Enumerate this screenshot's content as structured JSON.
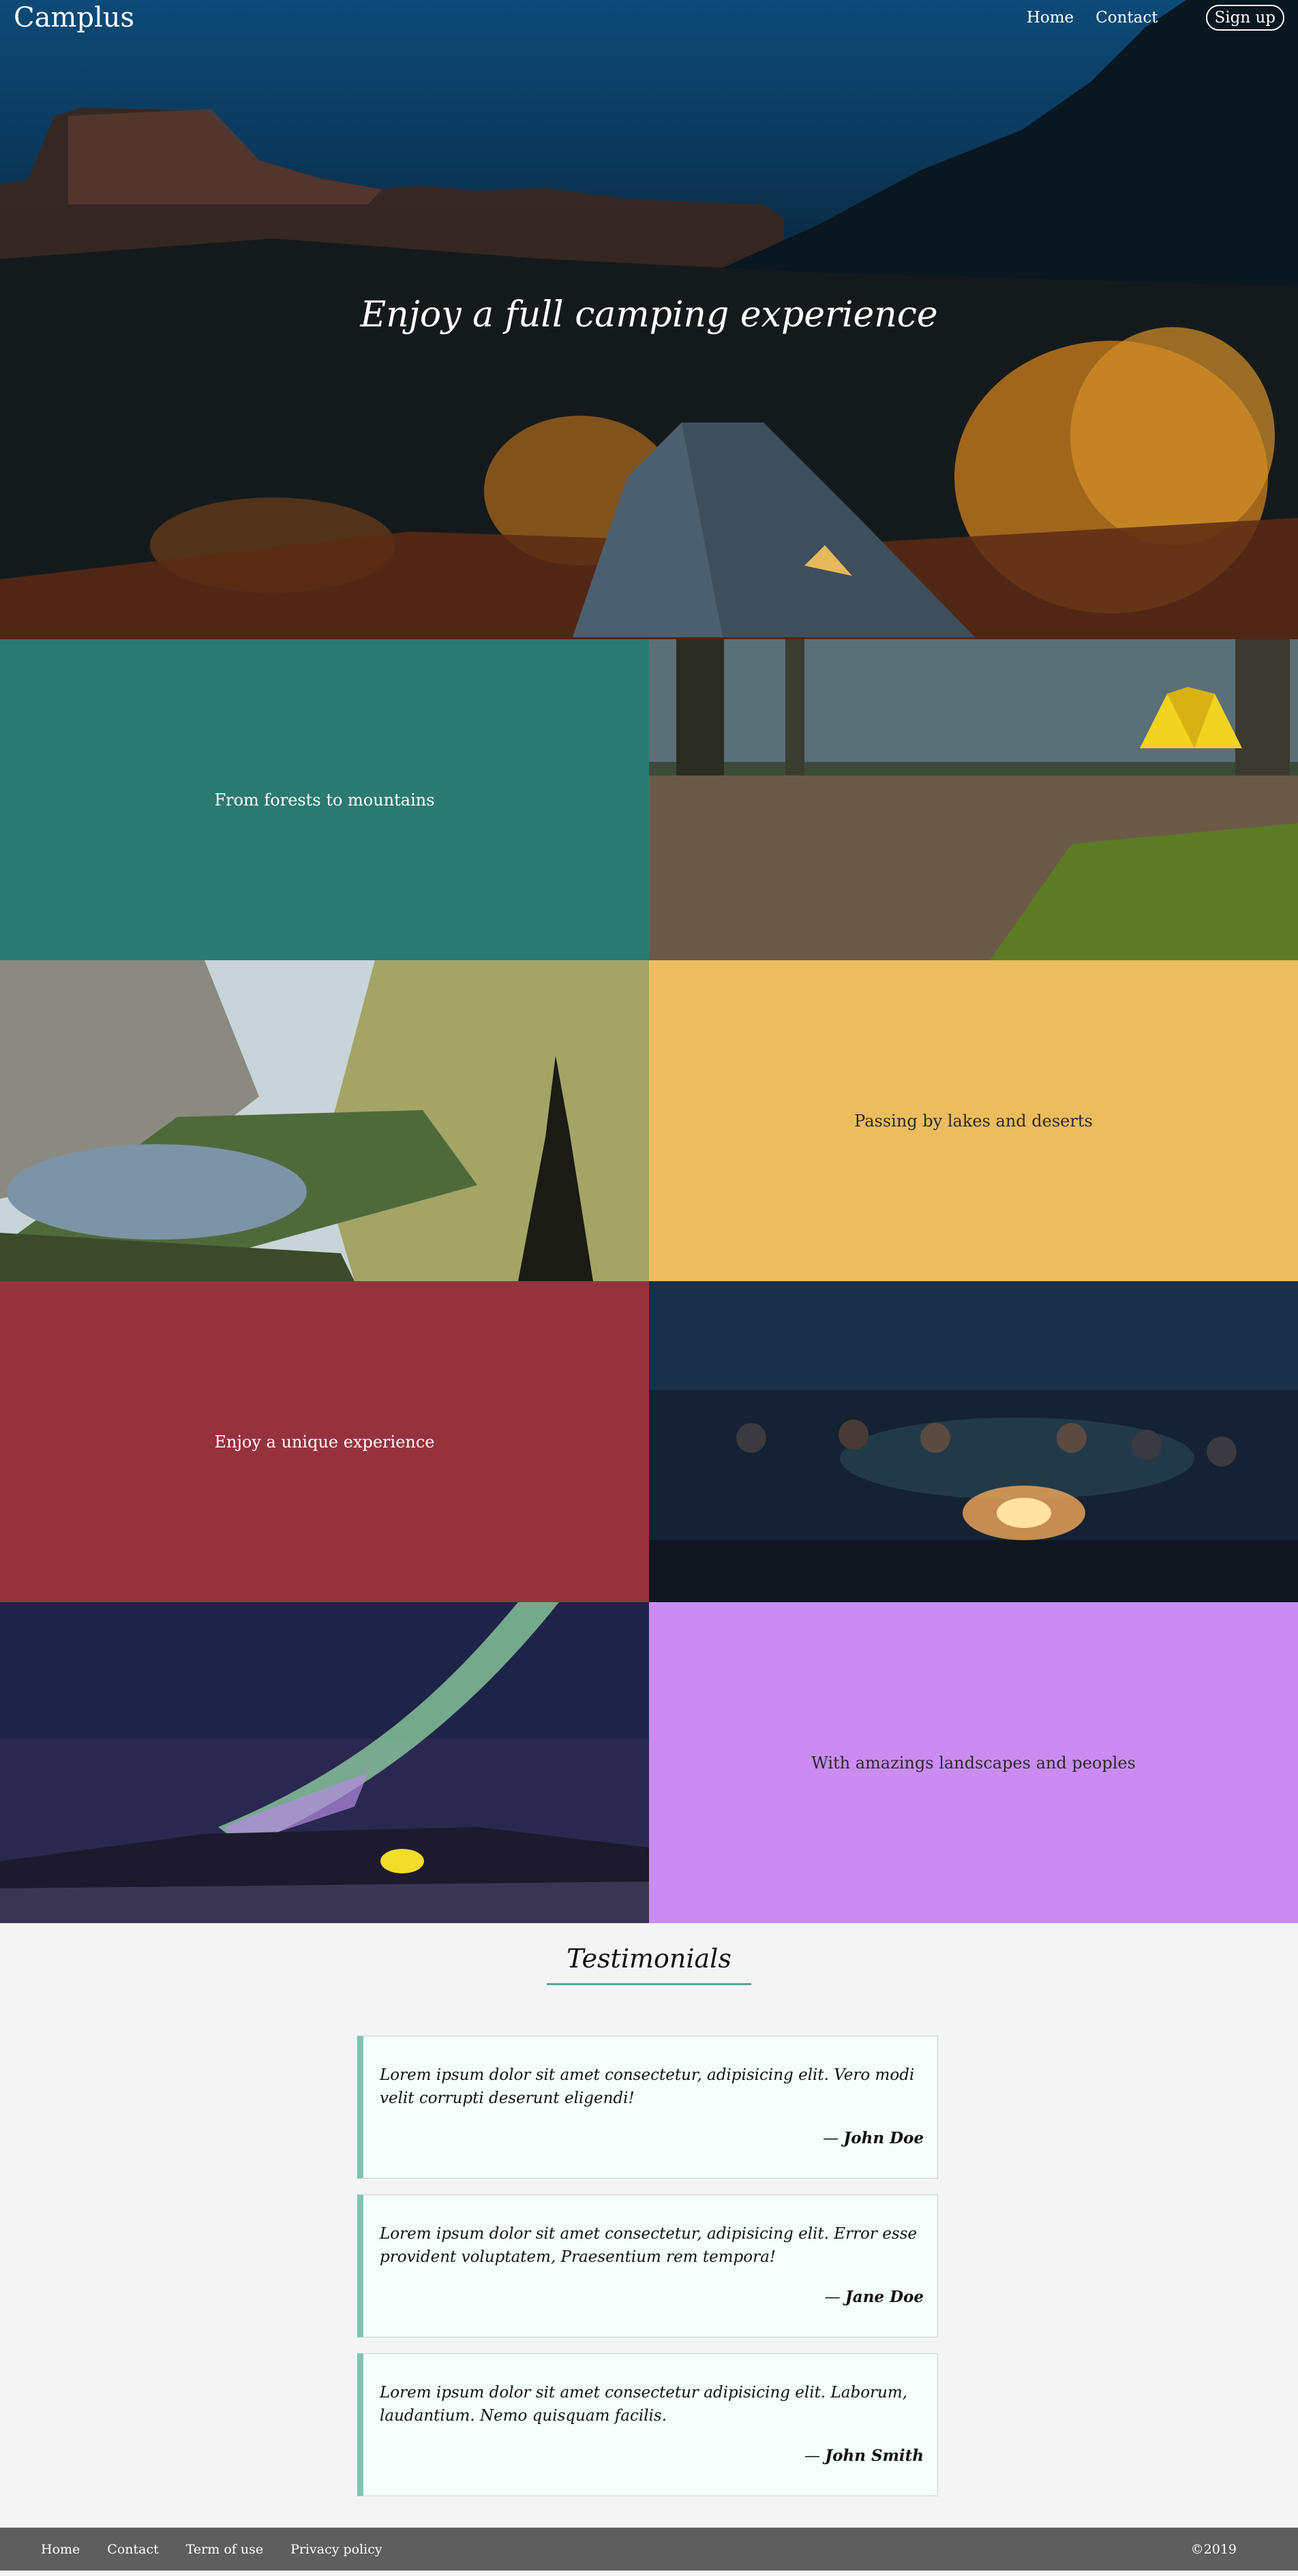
{
  "header": {
    "brand": "Camplus",
    "nav": {
      "home": "Home",
      "contact": "Contact"
    },
    "signup": "Sign up"
  },
  "hero": {
    "title": "Enjoy a full camping experience"
  },
  "features": [
    {
      "text": "From forests to mountains",
      "color": "#2b7a72",
      "image": "forest-tent-photo"
    },
    {
      "text": "Passing by lakes and deserts",
      "color": "#ecbd5f",
      "image": "mountain-lake-photo"
    },
    {
      "text": "Enjoy a unique experience",
      "color": "#96323e",
      "image": "campfire-night-photo"
    },
    {
      "text": "With amazings landscapes and peoples",
      "color": "#cb8cf2",
      "image": "aurora-tent-photo"
    }
  ],
  "testimonials": {
    "title": "Testimonials",
    "accent": "#7fc4b3",
    "items": [
      {
        "text": "Lorem ipsum dolor sit amet consectetur, adipisicing elit. Vero modi velit corrupti deserunt eligendi!",
        "author": "John Doe"
      },
      {
        "text": "Lorem ipsum dolor sit amet consectetur, adipisicing elit. Error esse provident voluptatem, Praesentium rem tempora!",
        "author": "Jane Doe"
      },
      {
        "text": "Lorem ipsum dolor sit amet consectetur adipisicing elit. Laborum, laudantium. Nemo quisquam facilis.",
        "author": "John Smith"
      }
    ]
  },
  "footer": {
    "links": [
      "Home",
      "Contact",
      "Term of use",
      "Privacy policy"
    ],
    "copyright": "©2019"
  }
}
